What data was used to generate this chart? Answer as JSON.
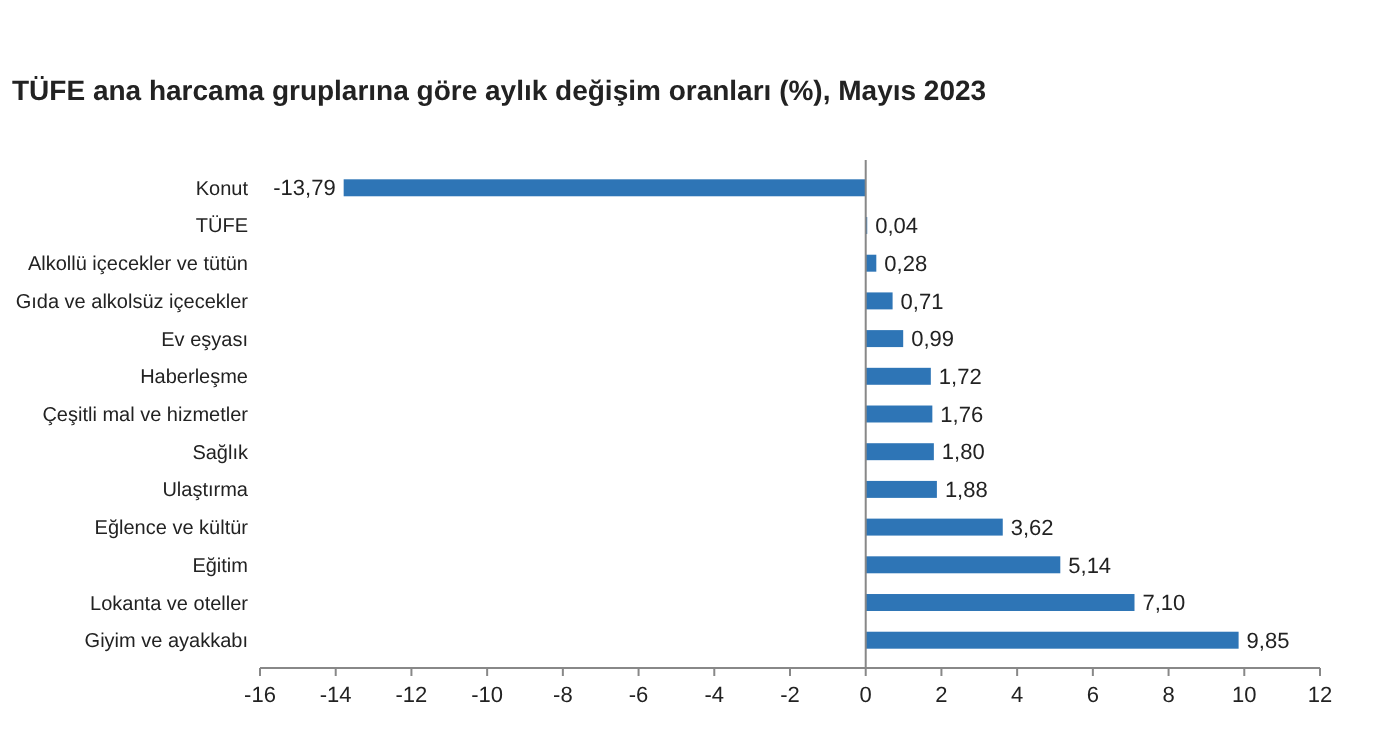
{
  "chart_data": {
    "type": "bar",
    "orientation": "horizontal",
    "title": "TÜFE ana harcama gruplarına göre aylık değişim oranları (%), Mayıs 2023",
    "categories": [
      "Konut",
      "TÜFE",
      "Alkollü içecekler ve tütün",
      "Gıda ve alkolsüz içecekler",
      "Ev eşyası",
      "Haberleşme",
      "Çeşitli mal ve hizmetler",
      "Sağlık",
      "Ulaştırma",
      "Eğlence ve kültür",
      "Eğitim",
      "Lokanta ve oteller",
      "Giyim ve ayakkabı"
    ],
    "values": [
      -13.79,
      0.04,
      0.28,
      0.71,
      0.99,
      1.72,
      1.76,
      1.8,
      1.88,
      3.62,
      5.14,
      7.1,
      9.85
    ],
    "value_labels": [
      "-13,79",
      "0,04",
      "0,28",
      "0,71",
      "0,99",
      "1,72",
      "1,76",
      "1,80",
      "1,88",
      "3,62",
      "5,14",
      "7,10",
      "9,85"
    ],
    "color": "#2e75b6",
    "xlim": [
      -16,
      12
    ],
    "xticks": [
      -16,
      -14,
      -12,
      -10,
      -8,
      -6,
      -4,
      -2,
      0,
      2,
      4,
      6,
      8,
      10,
      12
    ]
  }
}
